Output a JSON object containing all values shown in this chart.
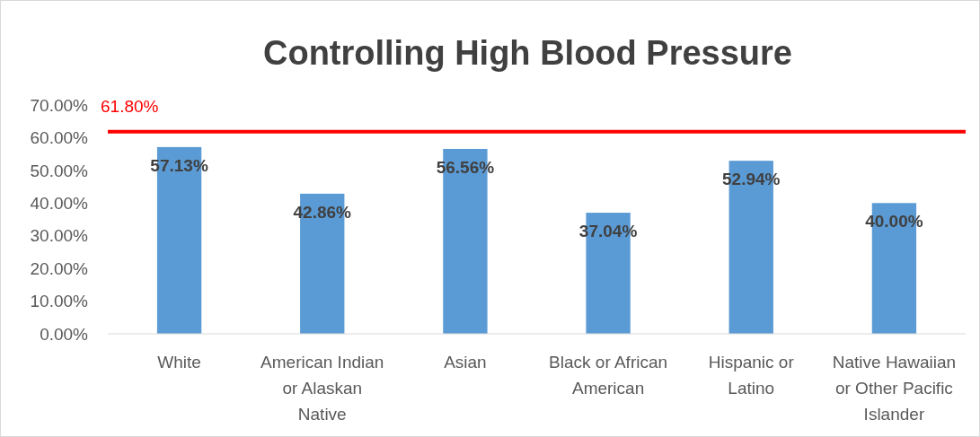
{
  "chart_data": {
    "type": "bar",
    "title": "Controlling High Blood Pressure",
    "categories": [
      "White",
      "American Indian or Alaskan Native",
      "Asian",
      "Black or African American",
      "Hispanic or Latino",
      "Native Hawaiian or Other Pacific Islander"
    ],
    "values": [
      57.13,
      42.86,
      56.56,
      37.04,
      52.94,
      40.0
    ],
    "value_labels": [
      "57.13%",
      "42.86%",
      "56.56%",
      "37.04%",
      "52.94%",
      "40.00%"
    ],
    "color": "#5b9bd5",
    "ylim": [
      0,
      70
    ],
    "yticks": [
      {
        "value": 0,
        "label": "0.00%"
      },
      {
        "value": 10,
        "label": "10.00%"
      },
      {
        "value": 20,
        "label": "20.00%"
      },
      {
        "value": 30,
        "label": "30.00%"
      },
      {
        "value": 40,
        "label": "40.00%"
      },
      {
        "value": 50,
        "label": "50.00%"
      },
      {
        "value": 60,
        "label": "60.00%"
      },
      {
        "value": 70,
        "label": "70.00%"
      }
    ],
    "ref_lines": [
      {
        "axis": "y",
        "value": 61.8,
        "label": "61.80%",
        "color": "#ff0000"
      }
    ],
    "grid": false
  }
}
